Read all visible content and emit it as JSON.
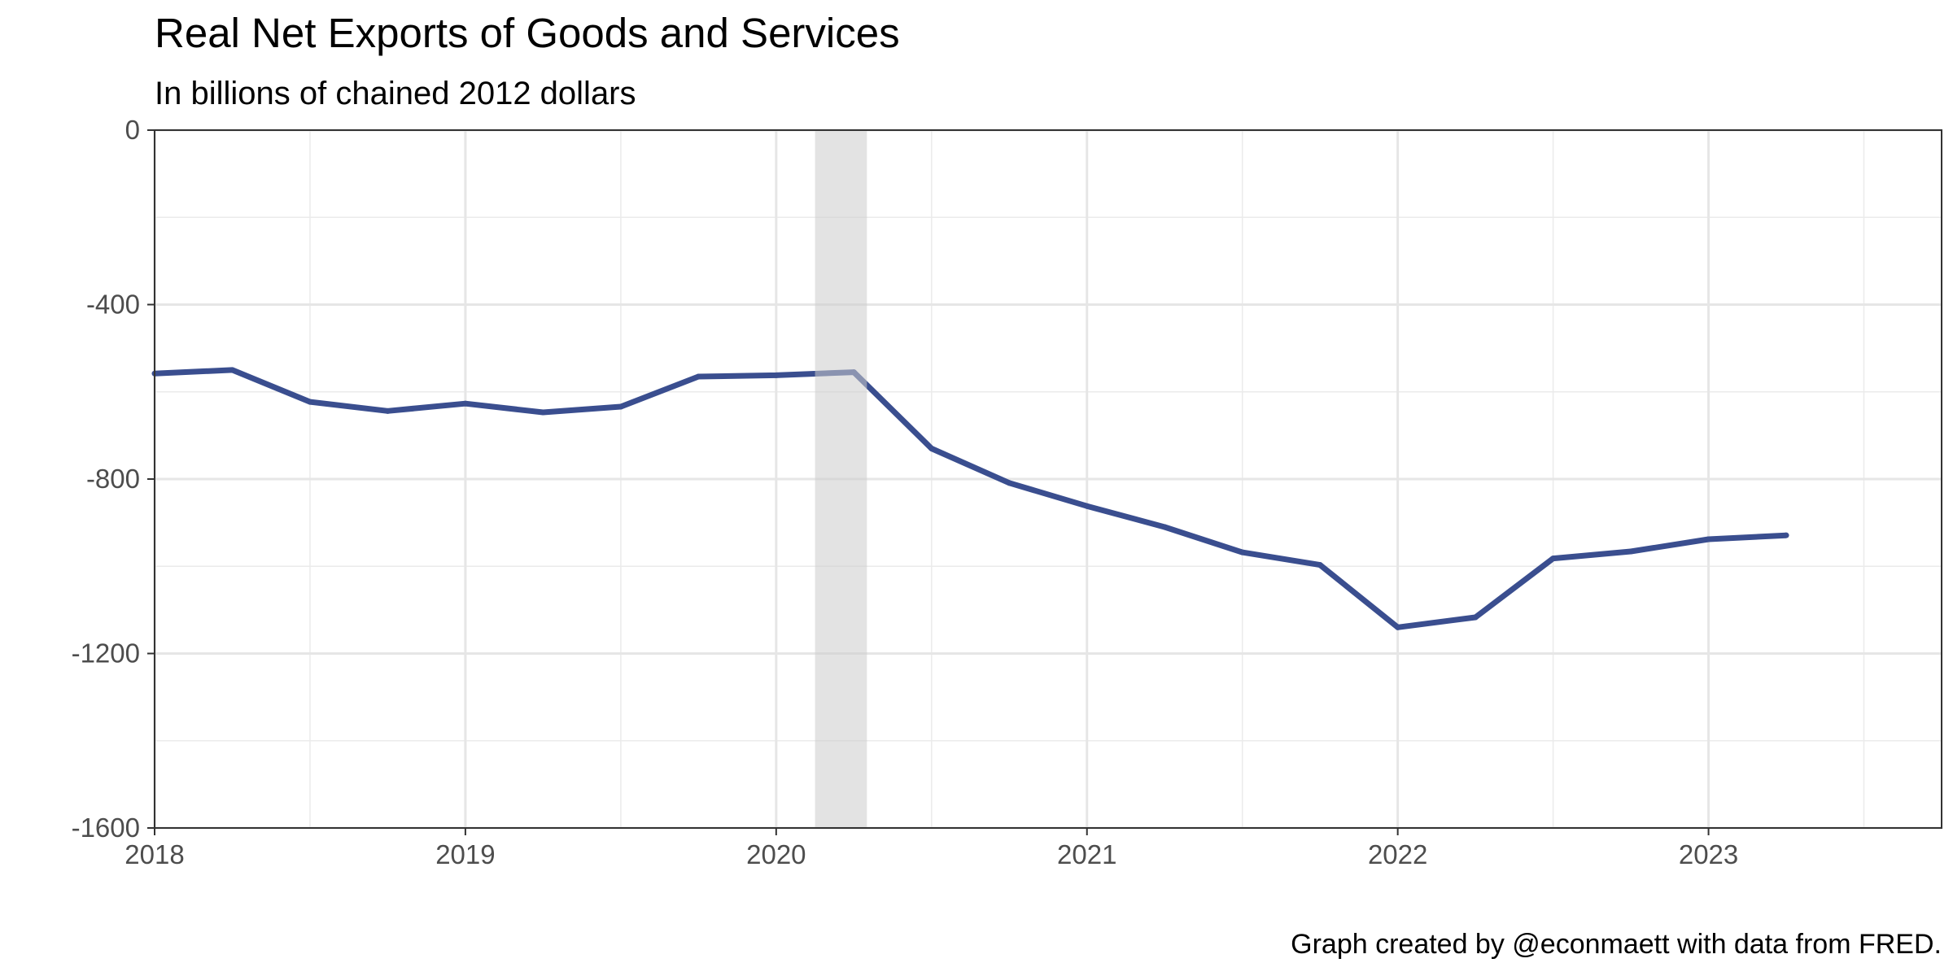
{
  "chart_data": {
    "type": "line",
    "title": "Real Net Exports of Goods and Services",
    "subtitle": "In billions of chained 2012 dollars",
    "caption": "Graph created by @econmaett with data from FRED.",
    "xlabel": "",
    "ylabel": "",
    "xlim": [
      2018.0,
      2023.75
    ],
    "ylim": [
      -1600,
      0
    ],
    "x_ticks": [
      2018,
      2019,
      2020,
      2021,
      2022,
      2023
    ],
    "x_tick_labels": [
      "2018",
      "2019",
      "2020",
      "2021",
      "2022",
      "2023"
    ],
    "y_ticks": [
      0,
      -400,
      -800,
      -1200,
      -1600
    ],
    "y_tick_labels": [
      "0",
      "-400",
      "-800",
      "-1200",
      "-1600"
    ],
    "grid": true,
    "reference_line": {
      "y": 0,
      "style": "dashed"
    },
    "recession_shading": [
      {
        "start": 2020.125,
        "end": 2020.292
      }
    ],
    "series": [
      {
        "name": "Real Net Exports",
        "color": "#3a4e8f",
        "x": [
          2018.0,
          2018.25,
          2018.5,
          2018.75,
          2019.0,
          2019.25,
          2019.5,
          2019.75,
          2020.0,
          2020.25,
          2020.5,
          2020.75,
          2021.0,
          2021.25,
          2021.5,
          2021.75,
          2022.0,
          2022.25,
          2022.5,
          2022.75,
          2023.0,
          2023.25
        ],
        "values": [
          -558,
          -550,
          -623,
          -644,
          -627,
          -647,
          -634,
          -565,
          -562,
          -555,
          -730,
          -809,
          -862,
          -910,
          -968,
          -997,
          -1140,
          -1117,
          -982,
          -966,
          -938,
          -929
        ]
      }
    ]
  }
}
